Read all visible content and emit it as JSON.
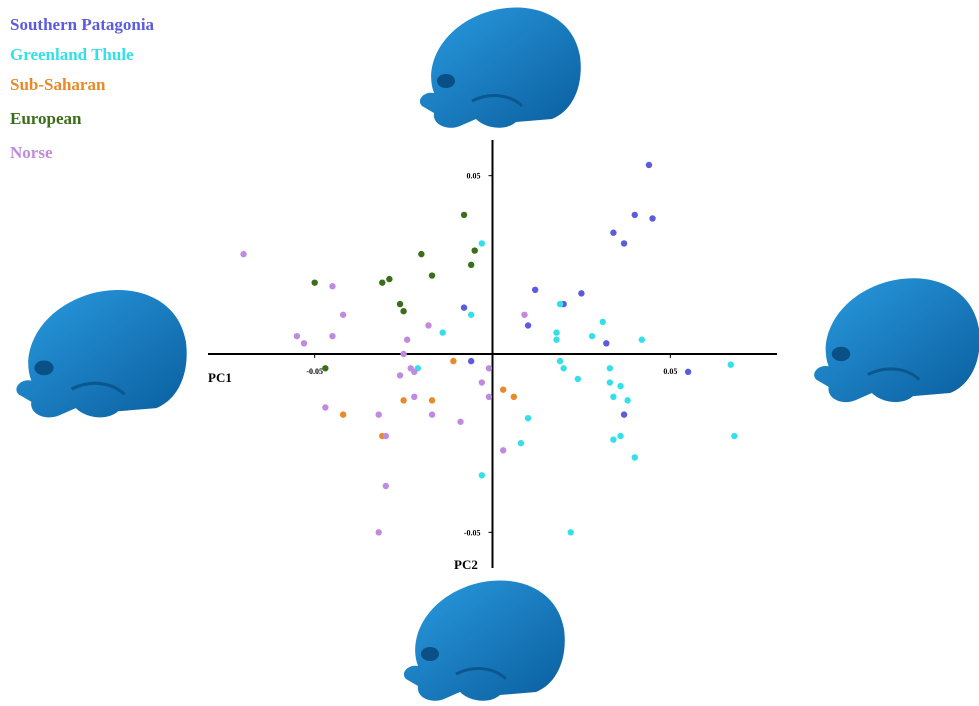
{
  "chart_data": {
    "type": "scatter",
    "x_label": "PC1",
    "y_label": "PC2",
    "xlim": [
      -0.08,
      0.08
    ],
    "ylim": [
      -0.06,
      0.06
    ],
    "xticks": [
      -0.05,
      0.05
    ],
    "yticks": [
      -0.05,
      0.05
    ],
    "legend": "top-left",
    "series": [
      {
        "name": "Southern Patagonia",
        "color": "#5b5be0",
        "x": [
          0.044,
          0.04,
          0.045,
          0.034,
          0.037,
          0.012,
          0.02,
          0.025,
          -0.008,
          0.01,
          0.032,
          -0.006,
          0.037,
          0.055
        ],
        "values": [
          0.053,
          0.039,
          0.038,
          0.034,
          0.031,
          0.018,
          0.014,
          0.017,
          0.013,
          0.008,
          0.003,
          -0.002,
          -0.017,
          -0.005
        ]
      },
      {
        "name": "Greenland Thule",
        "color": "#33e0ea",
        "x": [
          -0.003,
          -0.006,
          -0.014,
          0.019,
          0.018,
          0.018,
          0.031,
          0.028,
          0.042,
          0.019,
          0.02,
          0.024,
          0.033,
          0.033,
          0.036,
          0.034,
          0.038,
          0.067,
          0.01,
          0.008,
          0.034,
          0.036,
          0.04,
          0.068,
          -0.003,
          0.022,
          -0.021
        ],
        "values": [
          0.031,
          0.011,
          0.006,
          0.014,
          0.006,
          0.004,
          0.009,
          0.005,
          0.004,
          -0.002,
          -0.004,
          -0.007,
          -0.004,
          -0.008,
          -0.009,
          -0.012,
          -0.013,
          -0.003,
          -0.018,
          -0.025,
          -0.024,
          -0.023,
          -0.029,
          -0.023,
          -0.034,
          -0.05,
          -0.004
        ]
      },
      {
        "name": "Sub-Saharan",
        "color": "#e88a2a",
        "x": [
          -0.011,
          0.003,
          0.006,
          -0.017,
          -0.025,
          -0.042,
          -0.031
        ],
        "values": [
          -0.002,
          -0.01,
          -0.012,
          -0.013,
          -0.013,
          -0.017,
          -0.023
        ]
      },
      {
        "name": "European",
        "color": "#3a6e1a",
        "x": [
          -0.008,
          -0.005,
          -0.02,
          -0.006,
          -0.017,
          -0.031,
          -0.029,
          -0.05,
          -0.026,
          -0.025,
          -0.047
        ],
        "values": [
          0.039,
          0.029,
          0.028,
          0.025,
          0.022,
          0.02,
          0.021,
          0.02,
          0.014,
          0.012,
          -0.004
        ]
      },
      {
        "name": "Norse",
        "color": "#c08ae0",
        "x": [
          -0.07,
          -0.045,
          -0.042,
          -0.045,
          -0.055,
          -0.053,
          -0.018,
          -0.024,
          0.009,
          -0.025,
          -0.023,
          -0.026,
          -0.022,
          -0.003,
          -0.001,
          -0.001,
          -0.022,
          -0.017,
          -0.009,
          -0.032,
          -0.03,
          -0.047,
          0.003,
          -0.03,
          -0.032
        ],
        "values": [
          0.028,
          0.019,
          0.011,
          0.005,
          0.005,
          0.003,
          0.008,
          0.004,
          0.011,
          0.0,
          -0.004,
          -0.006,
          -0.005,
          -0.008,
          -0.012,
          -0.004,
          -0.012,
          -0.017,
          -0.019,
          -0.017,
          -0.023,
          -0.015,
          -0.027,
          -0.037,
          -0.05
        ]
      }
    ]
  }
}
